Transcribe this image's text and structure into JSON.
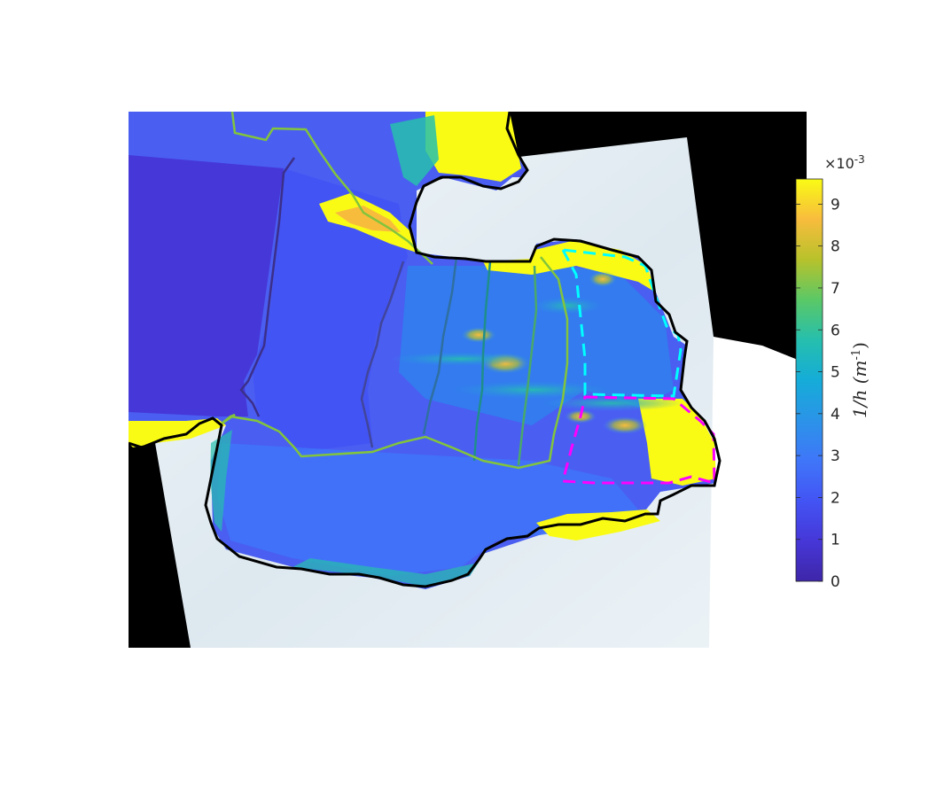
{
  "chart_data": {
    "type": "heatmap",
    "colormap": "parula",
    "colorbar": {
      "label_main": "1/h (m",
      "label_exp": "-1",
      "label_close": ")",
      "multiplier_base": "×10",
      "multiplier_exp": "-3",
      "ticks": [
        0,
        1,
        2,
        3,
        4,
        5,
        6,
        7,
        8,
        9
      ],
      "tick_labels": [
        "0",
        "1",
        "2",
        "3",
        "4",
        "5",
        "6",
        "7",
        "8",
        "9"
      ],
      "clim": [
        0,
        9.6
      ]
    },
    "overlays": {
      "boundary_color": "#000000",
      "dashed_box_1_color": "#00ffff",
      "dashed_box_2_color": "#ff00ff",
      "flowline_colors": [
        "#3b2f8a",
        "#41459b",
        "#2f6fa0",
        "#1f8e8b",
        "#4aa86a",
        "#82c43c"
      ]
    }
  }
}
